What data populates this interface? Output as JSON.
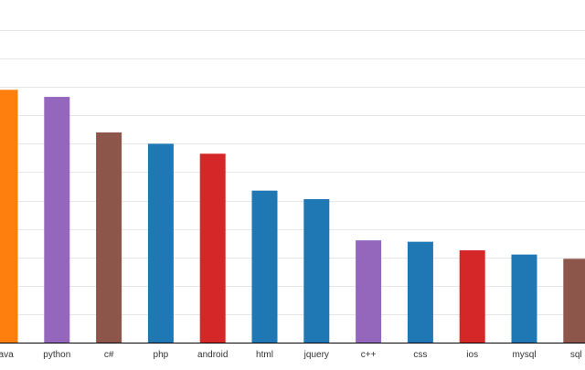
{
  "chart_data": {
    "type": "bar",
    "categories": [
      "java",
      "python",
      "c#",
      "php",
      "android",
      "html",
      "jquery",
      "c++",
      "css",
      "ios",
      "mysql",
      "sql"
    ],
    "values": [
      8.9,
      8.65,
      7.4,
      7.0,
      6.65,
      5.35,
      5.05,
      3.6,
      3.55,
      3.25,
      3.1,
      2.95
    ],
    "colors": [
      "#ff7f0e",
      "#9467bd",
      "#8c564b",
      "#1f77b4",
      "#d62728",
      "#1f77b4",
      "#1f77b4",
      "#9467bd",
      "#1f77b4",
      "#d62728",
      "#1f77b4",
      "#8c564b"
    ],
    "ylim": [
      0,
      11
    ],
    "grid": true,
    "title": "",
    "xlabel": "",
    "ylabel": ""
  }
}
